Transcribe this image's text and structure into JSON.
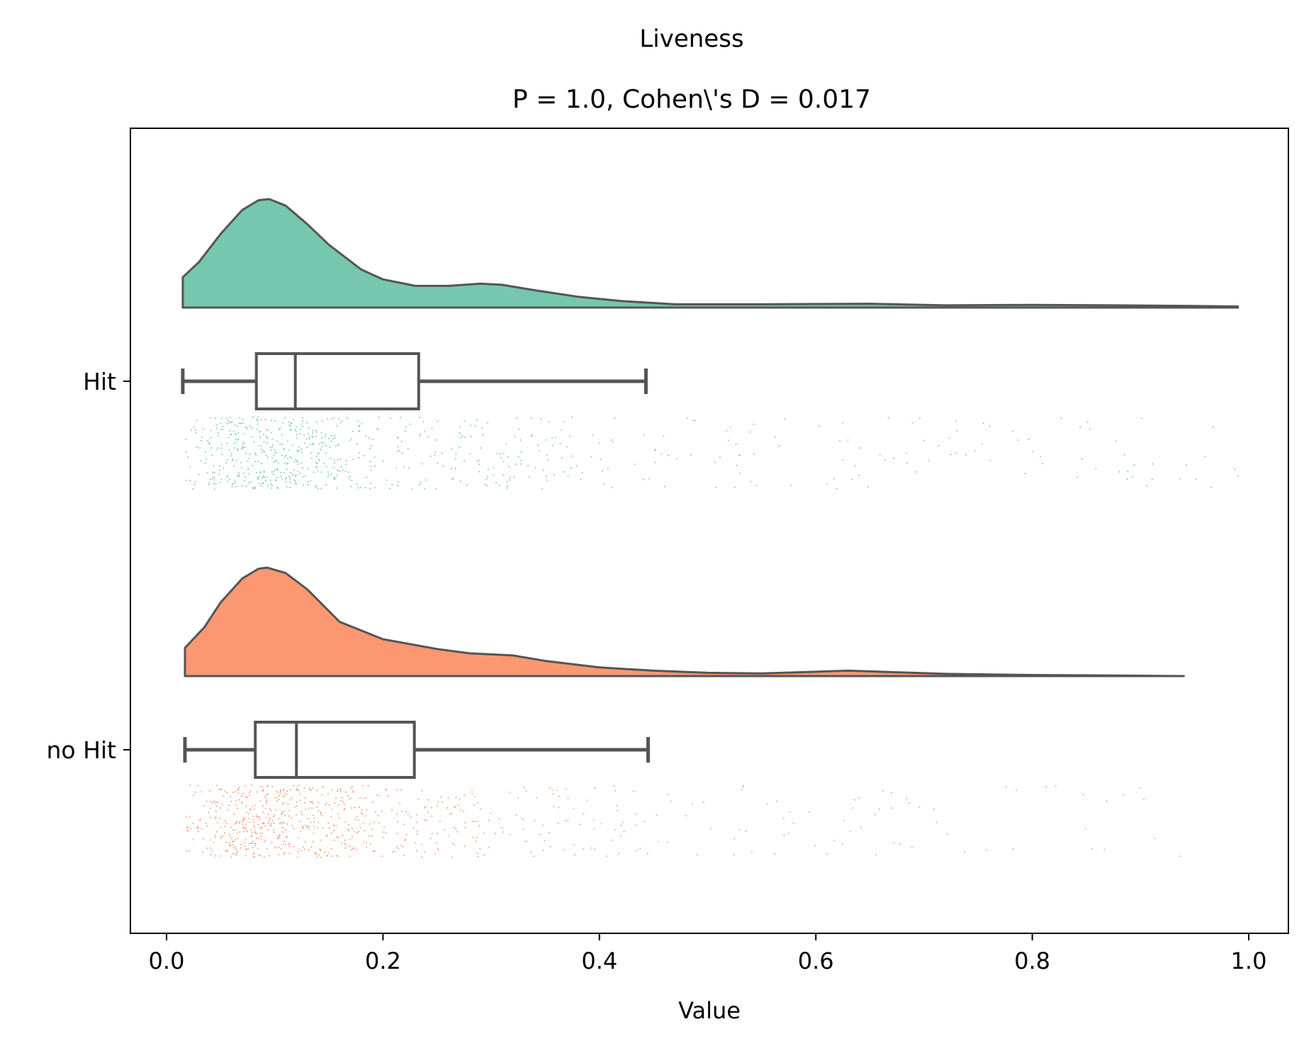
{
  "chart_data": {
    "type": "raincloud",
    "suptitle": "Liveness",
    "title": "P = 1.0, Cohen\\'s D = 0.017",
    "xlabel": "Value",
    "ylabel": "",
    "xlim": [
      -0.03,
      1.04
    ],
    "xticks": [
      0.0,
      0.2,
      0.4,
      0.6,
      0.8,
      1.0
    ],
    "xtick_labels": [
      "0.0",
      "0.2",
      "0.4",
      "0.6",
      "0.8",
      "1.0"
    ],
    "grid": false,
    "categories": [
      "Hit",
      "no Hit"
    ],
    "series": [
      {
        "name": "Hit",
        "color": "#66c2a5",
        "box": {
          "whisker_low": 0.015,
          "q1": 0.083,
          "median": 0.119,
          "q3": 0.233,
          "whisker_high": 0.443
        },
        "density": [
          [
            0.015,
            0.28
          ],
          [
            0.03,
            0.42
          ],
          [
            0.05,
            0.68
          ],
          [
            0.07,
            0.9
          ],
          [
            0.085,
            0.99
          ],
          [
            0.095,
            1.0
          ],
          [
            0.11,
            0.94
          ],
          [
            0.13,
            0.77
          ],
          [
            0.15,
            0.58
          ],
          [
            0.18,
            0.35
          ],
          [
            0.2,
            0.26
          ],
          [
            0.23,
            0.2
          ],
          [
            0.26,
            0.2
          ],
          [
            0.29,
            0.22
          ],
          [
            0.31,
            0.21
          ],
          [
            0.34,
            0.16
          ],
          [
            0.38,
            0.1
          ],
          [
            0.42,
            0.06
          ],
          [
            0.47,
            0.03
          ],
          [
            0.55,
            0.03
          ],
          [
            0.65,
            0.035
          ],
          [
            0.72,
            0.02
          ],
          [
            0.8,
            0.025
          ],
          [
            0.88,
            0.02
          ],
          [
            0.95,
            0.015
          ],
          [
            0.99,
            0.01
          ]
        ],
        "points_seed": 7,
        "point_count": 720
      },
      {
        "name": "no Hit",
        "color": "#fc8d62",
        "box": {
          "whisker_low": 0.017,
          "q1": 0.082,
          "median": 0.12,
          "q3": 0.229,
          "whisker_high": 0.445
        },
        "density": [
          [
            0.017,
            0.26
          ],
          [
            0.035,
            0.45
          ],
          [
            0.05,
            0.68
          ],
          [
            0.07,
            0.9
          ],
          [
            0.085,
            0.99
          ],
          [
            0.093,
            1.0
          ],
          [
            0.11,
            0.95
          ],
          [
            0.13,
            0.8
          ],
          [
            0.16,
            0.5
          ],
          [
            0.2,
            0.34
          ],
          [
            0.25,
            0.25
          ],
          [
            0.28,
            0.21
          ],
          [
            0.32,
            0.19
          ],
          [
            0.35,
            0.14
          ],
          [
            0.4,
            0.08
          ],
          [
            0.45,
            0.05
          ],
          [
            0.5,
            0.03
          ],
          [
            0.55,
            0.025
          ],
          [
            0.6,
            0.04
          ],
          [
            0.63,
            0.05
          ],
          [
            0.66,
            0.04
          ],
          [
            0.72,
            0.02
          ],
          [
            0.8,
            0.01
          ],
          [
            0.88,
            0.005
          ],
          [
            0.94,
            0.0
          ]
        ],
        "points_seed": 13,
        "point_count": 760
      }
    ]
  }
}
